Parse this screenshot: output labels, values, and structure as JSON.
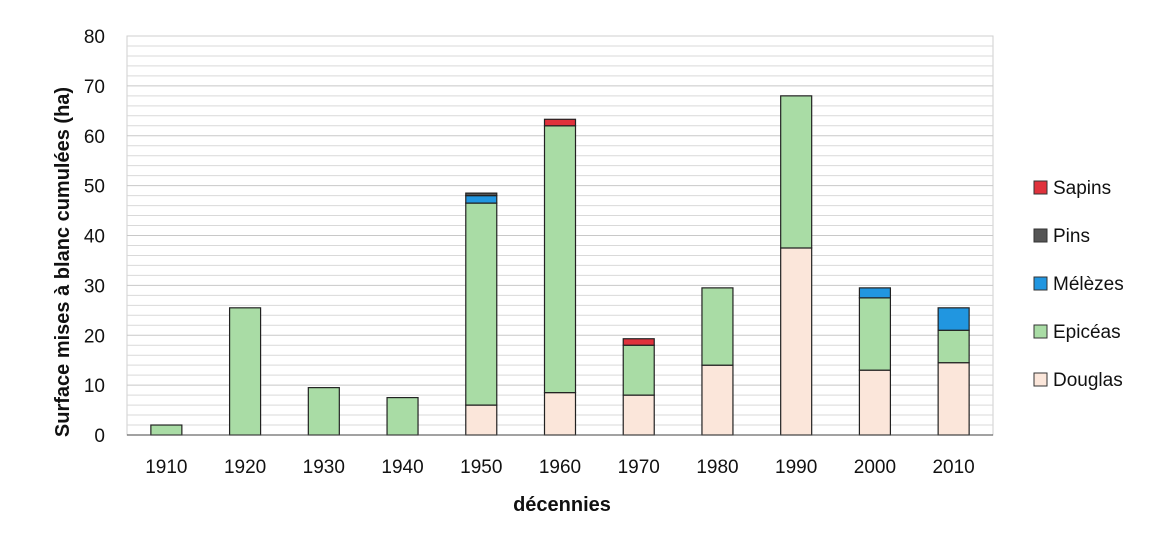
{
  "chart_data": {
    "type": "bar",
    "stacked": true,
    "title": "",
    "xlabel": "décennies",
    "ylabel": "Surface mises à blanc cumulées (ha)",
    "ylim": [
      0,
      80
    ],
    "yticks": [
      0,
      10,
      20,
      30,
      40,
      50,
      60,
      70,
      80
    ],
    "grid": true,
    "legend_position": "right",
    "categories": [
      "1910",
      "1920",
      "1930",
      "1940",
      "1950",
      "1960",
      "1970",
      "1980",
      "1990",
      "2000",
      "2010"
    ],
    "series": [
      {
        "name": "Douglas",
        "color": "#fbe6da",
        "values": [
          0,
          0,
          0,
          0,
          6,
          8.5,
          8,
          14,
          37.5,
          13,
          14.5
        ]
      },
      {
        "name": "Epicéas",
        "color": "#a9dca5",
        "values": [
          2,
          25.5,
          9.5,
          7.5,
          40.5,
          53.5,
          10,
          15.5,
          30.5,
          14.5,
          6.5
        ]
      },
      {
        "name": "Mélèzes",
        "color": "#2196e0",
        "values": [
          0,
          0,
          0,
          0,
          1.5,
          0,
          0,
          0,
          0,
          2,
          4.5
        ]
      },
      {
        "name": "Pins",
        "color": "#555555",
        "values": [
          0,
          0,
          0,
          0,
          0.5,
          0,
          0,
          0,
          0,
          0,
          0
        ]
      },
      {
        "name": "Sapins",
        "color": "#e0323c",
        "values": [
          0,
          0,
          0,
          0,
          0,
          1.3,
          1.3,
          0,
          0,
          0,
          0
        ]
      }
    ],
    "legend_order": [
      "Sapins",
      "Pins",
      "Mélèzes",
      "Epicéas",
      "Douglas"
    ],
    "outline_color": "#222222",
    "grid_color": "#d9d9d9"
  }
}
